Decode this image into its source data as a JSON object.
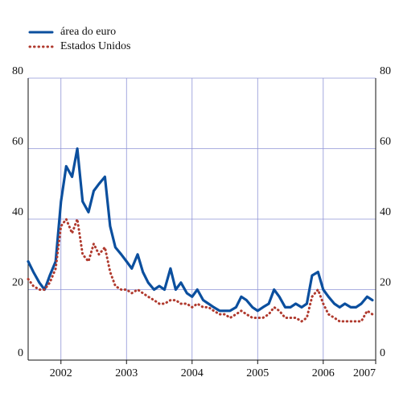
{
  "chart_data": {
    "type": "line",
    "x": [
      2002.0,
      2002.08,
      2002.17,
      2002.25,
      2002.33,
      2002.42,
      2002.5,
      2002.58,
      2002.67,
      2002.75,
      2002.83,
      2002.92,
      2003.0,
      2003.08,
      2003.17,
      2003.25,
      2003.33,
      2003.42,
      2003.5,
      2003.58,
      2003.67,
      2003.75,
      2003.83,
      2003.92,
      2004.0,
      2004.08,
      2004.17,
      2004.25,
      2004.33,
      2004.42,
      2004.5,
      2004.58,
      2004.67,
      2004.75,
      2004.83,
      2004.92,
      2005.0,
      2005.08,
      2005.17,
      2005.25,
      2005.33,
      2005.42,
      2005.5,
      2005.58,
      2005.67,
      2005.75,
      2005.83,
      2005.92,
      2006.0,
      2006.08,
      2006.17,
      2006.25,
      2006.33,
      2006.42,
      2006.5,
      2006.58,
      2006.67,
      2006.75,
      2006.83,
      2006.92,
      2007.0,
      2007.08,
      2007.17,
      2007.25
    ],
    "series": [
      {
        "name": "área do euro",
        "color": "#0b4f9e",
        "style": "solid",
        "values": [
          28,
          25,
          22,
          20,
          24,
          28,
          45,
          55,
          52,
          60,
          45,
          42,
          48,
          50,
          52,
          38,
          32,
          30,
          28,
          26,
          30,
          25,
          22,
          20,
          21,
          20,
          26,
          20,
          22,
          19,
          18,
          20,
          17,
          16,
          15,
          14,
          14,
          14,
          15,
          18,
          17,
          15,
          14,
          15,
          16,
          20,
          18,
          15,
          15,
          16,
          15,
          16,
          24,
          25,
          20,
          18,
          16,
          15,
          16,
          15,
          15,
          16,
          18,
          17
        ]
      },
      {
        "name": "Estados Unidos",
        "color": "#b03a2e",
        "style": "dotted",
        "values": [
          23,
          21,
          20,
          20,
          22,
          26,
          38,
          40,
          36,
          40,
          30,
          28,
          33,
          30,
          32,
          25,
          21,
          20,
          20,
          19,
          20,
          19,
          18,
          17,
          16,
          16,
          17,
          17,
          16,
          16,
          15,
          16,
          15,
          15,
          14,
          13,
          13,
          12,
          13,
          14,
          13,
          12,
          12,
          12,
          13,
          15,
          14,
          12,
          12,
          12,
          11,
          12,
          18,
          20,
          16,
          13,
          12,
          11,
          11,
          11,
          11,
          11,
          14,
          13
        ]
      }
    ],
    "xlim": [
      2002,
      2007.3
    ],
    "xticks": [
      {
        "value": 2002.5,
        "label": "2002"
      },
      {
        "value": 2003.5,
        "label": "2003"
      },
      {
        "value": 2004.5,
        "label": "2004"
      },
      {
        "value": 2005.5,
        "label": "2005"
      },
      {
        "value": 2006.5,
        "label": "2006"
      },
      {
        "value": 2007.3,
        "label": "2007"
      }
    ],
    "ylim": [
      0,
      80
    ],
    "yticks": [
      0,
      20,
      40,
      60,
      80
    ],
    "y2lim": [
      0,
      80
    ],
    "y2ticks": [
      0,
      20,
      40,
      60,
      80
    ],
    "grid": true,
    "legend": "top-left"
  }
}
